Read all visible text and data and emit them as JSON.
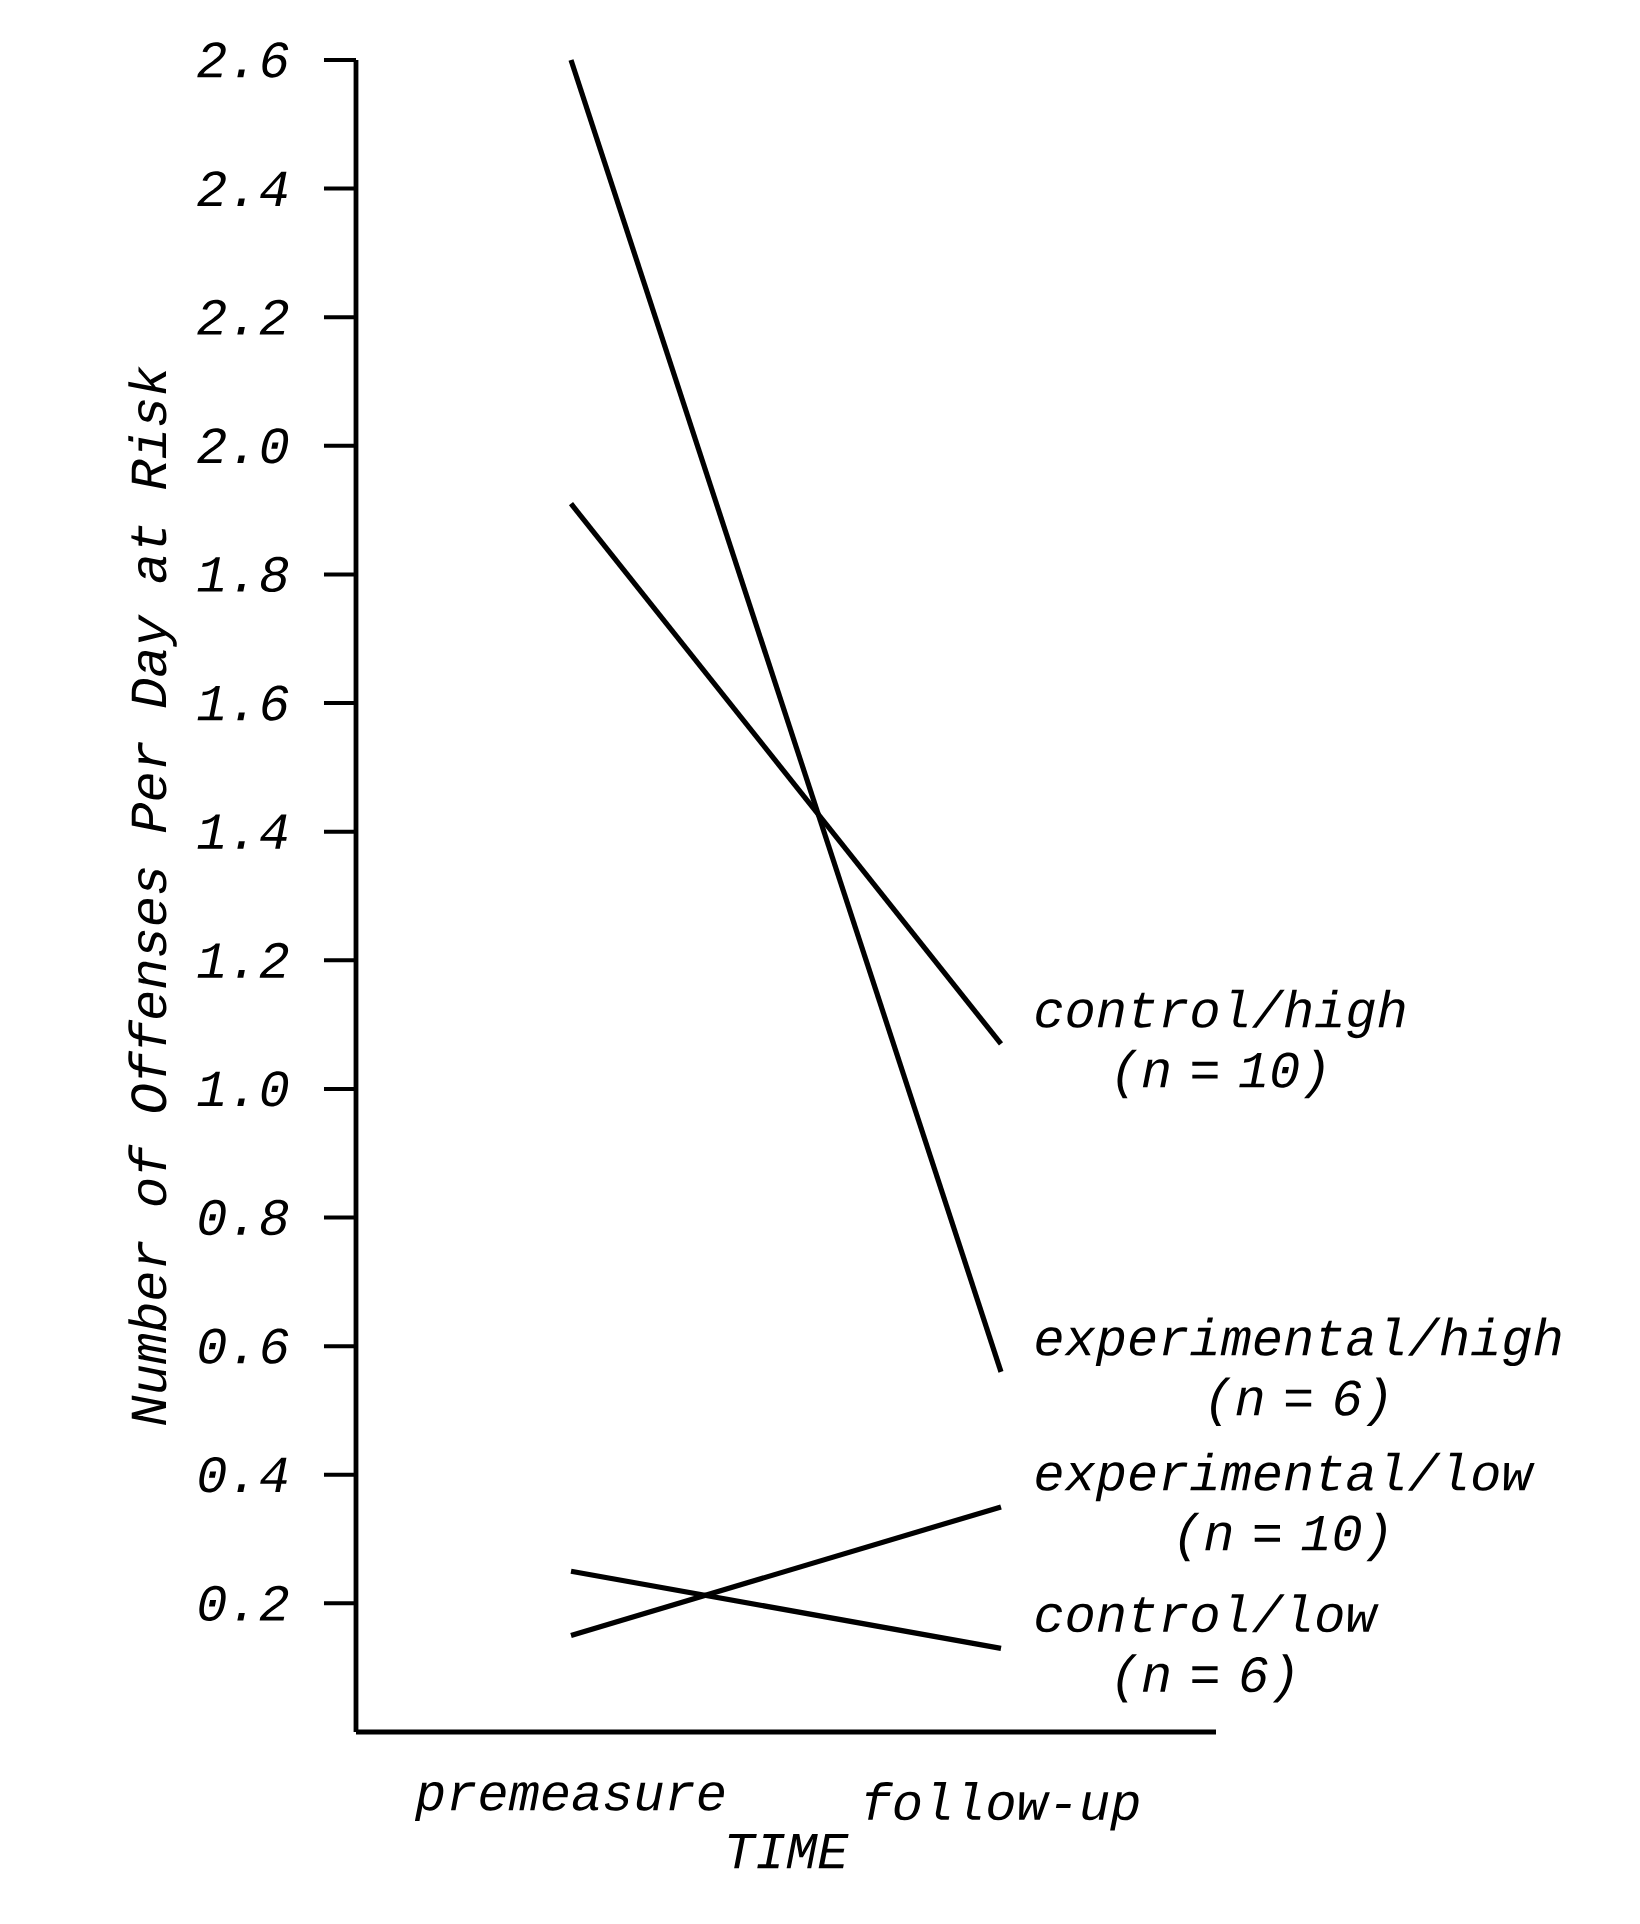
{
  "chart_data": {
    "type": "line",
    "xlabel": "TIME",
    "ylabel": "Number of Offenses Per Day at Risk",
    "categories": [
      "premeasure",
      "follow-up"
    ],
    "series": [
      {
        "name": "control/high (n = 10)",
        "color": "#000000",
        "values": [
          1.91,
          1.07
        ]
      },
      {
        "name": "experimental/high (n = 6)",
        "color": "#000000",
        "values": [
          2.6,
          0.56
        ]
      },
      {
        "name": "experimental/low (n = 10)",
        "color": "#000000",
        "values": [
          0.15,
          0.35
        ]
      },
      {
        "name": "control/low (n = 6)",
        "color": "#000000",
        "values": [
          0.25,
          0.13
        ]
      }
    ],
    "ylim": [
      0,
      2.6
    ],
    "yticks": [
      0.2,
      0.4,
      0.6,
      0.8,
      {
        "value": 1,
        "label": "1.0"
      },
      1.2,
      1.4,
      1.6,
      1.8,
      {
        "value": 2,
        "label": "2.0"
      },
      2.2,
      2.4,
      2.6
    ],
    "grid": false,
    "legend": false,
    "marker": "none",
    "line_style": "solid"
  }
}
